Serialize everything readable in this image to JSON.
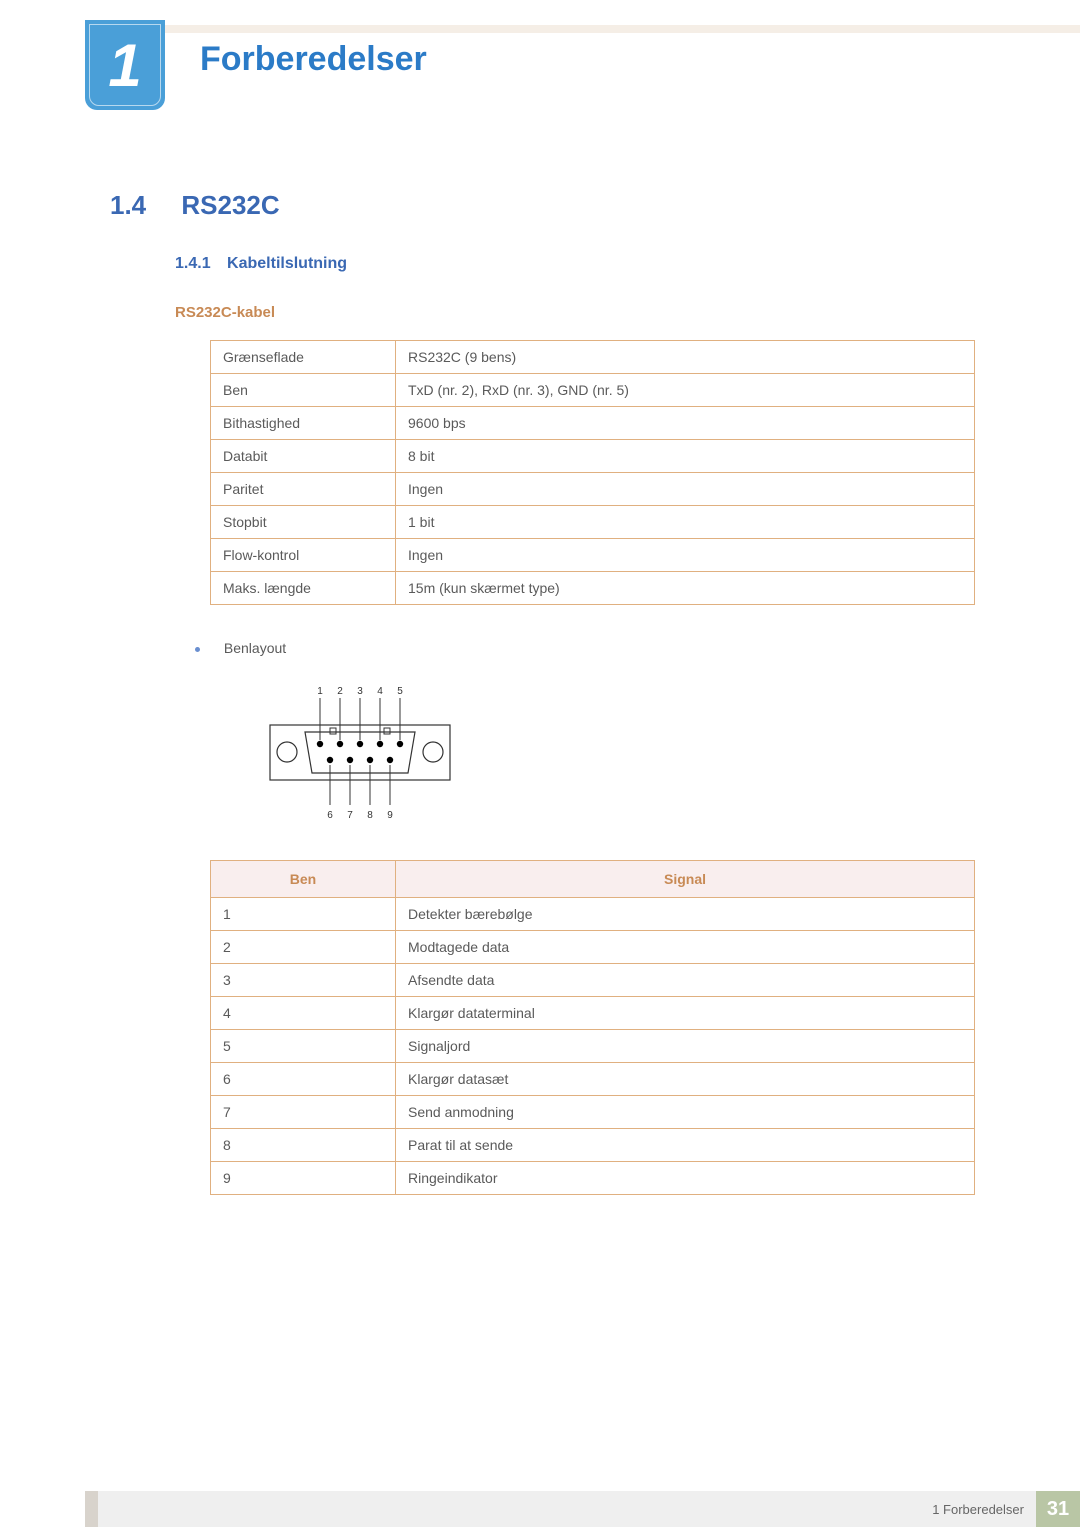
{
  "chapter": {
    "number": "1",
    "title": "Forberedelser"
  },
  "section": {
    "number": "1.4",
    "title": "RS232C"
  },
  "subsection": {
    "number": "1.4.1",
    "title": "Kabeltilslutning"
  },
  "subsubtitle": "RS232C-kabel",
  "specTable": {
    "rows": [
      {
        "label": "Grænseflade",
        "value": "RS232C (9 bens)"
      },
      {
        "label": "Ben",
        "value": "TxD (nr. 2), RxD (nr. 3), GND (nr. 5)"
      },
      {
        "label": "Bithastighed",
        "value": "9600 bps"
      },
      {
        "label": "Databit",
        "value": "8 bit"
      },
      {
        "label": "Paritet",
        "value": "Ingen"
      },
      {
        "label": "Stopbit",
        "value": "1 bit"
      },
      {
        "label": "Flow-kontrol",
        "value": "Ingen"
      },
      {
        "label": "Maks. længde",
        "value": "15m (kun skærmet type)"
      }
    ]
  },
  "bulletLabel": "Benlayout",
  "pinDiagram": {
    "topLabels": [
      "1",
      "2",
      "3",
      "4",
      "5"
    ],
    "bottomLabels": [
      "6",
      "7",
      "8",
      "9"
    ],
    "stroke": "#333333",
    "fill": "#000000"
  },
  "pinTable": {
    "headers": {
      "col1": "Ben",
      "col2": "Signal"
    },
    "rows": [
      {
        "pin": "1",
        "signal": "Detekter bærebølge"
      },
      {
        "pin": "2",
        "signal": "Modtagede data"
      },
      {
        "pin": "3",
        "signal": "Afsendte data"
      },
      {
        "pin": "4",
        "signal": "Klargør dataterminal"
      },
      {
        "pin": "5",
        "signal": "Signaljord"
      },
      {
        "pin": "6",
        "signal": "Klargør datasæt"
      },
      {
        "pin": "7",
        "signal": "Send anmodning"
      },
      {
        "pin": "8",
        "signal": "Parat til at sende"
      },
      {
        "pin": "9",
        "signal": "Ringeindikator"
      }
    ],
    "headerBg": "#f9eeee",
    "headerColor": "#c88a55",
    "borderColor": "#e0b080"
  },
  "footer": {
    "text": "1 Forberedelser",
    "pageNumber": "31"
  },
  "colors": {
    "headingBlue": "#3a68b3",
    "titleBlue": "#2b7bc7",
    "badgeBlue": "#4a9fd8",
    "accentTan": "#c88a55",
    "pageGreen": "#b9c6a5"
  }
}
